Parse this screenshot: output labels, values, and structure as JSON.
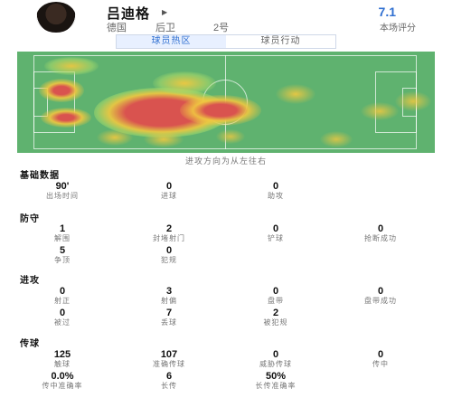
{
  "player": {
    "name": "吕迪格",
    "country": "德国",
    "position": "后卫",
    "number": "2号",
    "rating": "7.1",
    "rating_label": "本场评分"
  },
  "tabs": [
    {
      "label": "球员热区",
      "active": true
    },
    {
      "label": "球员行动",
      "active": false
    }
  ],
  "heatmap_caption": "进攻方向为从左往右",
  "sections": [
    {
      "title": "基础数据",
      "stats": [
        {
          "value": "90'",
          "label": "出场时间"
        },
        {
          "value": "0",
          "label": "进球"
        },
        {
          "value": "0",
          "label": "助攻"
        }
      ]
    },
    {
      "title": "防守",
      "stats": [
        {
          "value": "1",
          "label": "解围"
        },
        {
          "value": "2",
          "label": "封堵射门"
        },
        {
          "value": "0",
          "label": "铲球"
        },
        {
          "value": "0",
          "label": "抢断成功"
        },
        {
          "value": "5",
          "label": "争顶"
        },
        {
          "value": "0",
          "label": "犯规"
        }
      ]
    },
    {
      "title": "进攻",
      "stats": [
        {
          "value": "0",
          "label": "射正"
        },
        {
          "value": "3",
          "label": "射偏"
        },
        {
          "value": "0",
          "label": "盘带"
        },
        {
          "value": "0",
          "label": "盘带成功"
        },
        {
          "value": "0",
          "label": "被过"
        },
        {
          "value": "7",
          "label": "丢球"
        },
        {
          "value": "2",
          "label": "被犯规"
        }
      ]
    },
    {
      "title": "传球",
      "stats": [
        {
          "value": "125",
          "label": "触球"
        },
        {
          "value": "107",
          "label": "准确传球"
        },
        {
          "value": "0",
          "label": "威胁传球"
        },
        {
          "value": "0",
          "label": "传中"
        },
        {
          "value": "0.0%",
          "label": "传中准确率"
        },
        {
          "value": "6",
          "label": "长传"
        },
        {
          "value": "50%",
          "label": "长传准确率"
        }
      ]
    }
  ],
  "colors": {
    "accent": "#2f6fd1",
    "pitch": "#5fb26f",
    "hot": "#d9534f",
    "warm": "#f0c040",
    "cool": "#a6d96a"
  }
}
